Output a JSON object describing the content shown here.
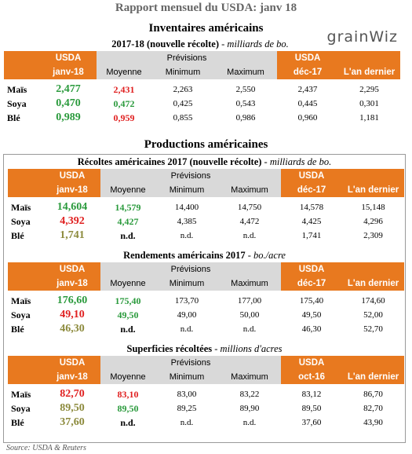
{
  "title": "Rapport mensuel du USDA: janv 18",
  "logo": "grainWiz",
  "inventaires": {
    "heading": "Inventaires américains",
    "table": {
      "subtitle": "2017-18 (nouvelle récolte)",
      "unit": "- milliards de bo.",
      "header_top": [
        "USDA",
        "Prévisions",
        "USDA"
      ],
      "header_bottom": [
        "janv-18",
        "Moyenne",
        "Minimum",
        "Maximum",
        "déc-17",
        "L'an dernier"
      ],
      "rows": [
        {
          "cells": [
            "Maïs",
            "2,477",
            "2,431",
            "2,263",
            "2,550",
            "2,437",
            "2,295"
          ],
          "colors": [
            "#2a9a3c",
            "#e02020"
          ]
        },
        {
          "cells": [
            "Soya",
            "0,470",
            "0,472",
            "0,425",
            "0,543",
            "0,445",
            "0,301"
          ],
          "colors": [
            "#2a9a3c",
            "#2a9a3c"
          ]
        },
        {
          "cells": [
            "Blé",
            "0,989",
            "0,959",
            "0,855",
            "0,986",
            "0,960",
            "1,181"
          ],
          "colors": [
            "#2a9a3c",
            "#e02020"
          ]
        }
      ]
    }
  },
  "productions": {
    "heading": "Productions américaines",
    "tables": [
      {
        "subtitle": "Récoltes américaines 2017 (nouvelle récolte)",
        "unit": "- milliards de bo.",
        "header_top": [
          "USDA",
          "Prévisions",
          "USDA"
        ],
        "header_bottom": [
          "janv-18",
          "Moyenne",
          "Minimum",
          "Maximum",
          "déc-17",
          "L'an dernier"
        ],
        "rows": [
          {
            "cells": [
              "Maïs",
              "14,604",
              "14,579",
              "14,400",
              "14,750",
              "14,578",
              "15,148"
            ],
            "colors": [
              "#2a9a3c",
              "#2a9a3c"
            ]
          },
          {
            "cells": [
              "Soya",
              "4,392",
              "4,427",
              "4,385",
              "4,472",
              "4,425",
              "4,296"
            ],
            "colors": [
              "#e02020",
              "#2a9a3c"
            ]
          },
          {
            "cells": [
              "Blé",
              "1,741",
              "n.d.",
              "n.d.",
              "n.d.",
              "1,741",
              "2,309"
            ],
            "colors": [
              "#8c8a3c",
              "#000000"
            ]
          }
        ]
      },
      {
        "subtitle": "Rendements américains 2017",
        "unit": "- bo./acre",
        "header_top": [
          "USDA",
          "Prévisions",
          "USDA"
        ],
        "header_bottom": [
          "janv-18",
          "Moyenne",
          "Minimum",
          "Maximum",
          "déc-17",
          "L'an dernier"
        ],
        "rows": [
          {
            "cells": [
              "Maïs",
              "176,60",
              "175,40",
              "173,70",
              "177,00",
              "175,40",
              "174,60"
            ],
            "colors": [
              "#2a9a3c",
              "#2a9a3c"
            ]
          },
          {
            "cells": [
              "Soya",
              "49,10",
              "49,50",
              "49,00",
              "50,00",
              "49,50",
              "52,00"
            ],
            "colors": [
              "#e02020",
              "#2a9a3c"
            ]
          },
          {
            "cells": [
              "Blé",
              "46,30",
              "n.d.",
              "n.d.",
              "n.d.",
              "46,30",
              "52,70"
            ],
            "colors": [
              "#8c8a3c",
              "#000000"
            ]
          }
        ]
      },
      {
        "subtitle": "Superficies récoltées",
        "unit": "- millions d'acres",
        "header_top": [
          "USDA",
          "Prévisions",
          "USDA"
        ],
        "header_bottom": [
          "janv-18",
          "Moyenne",
          "Minimum",
          "Maximum",
          "oct-16",
          "L'an dernier"
        ],
        "rows": [
          {
            "cells": [
              "Maïs",
              "82,70",
              "83,10",
              "83,00",
              "83,22",
              "83,12",
              "86,70"
            ],
            "colors": [
              "#e02020",
              "#e02020"
            ]
          },
          {
            "cells": [
              "Soya",
              "89,50",
              "89,50",
              "89,25",
              "89,90",
              "89,50",
              "82,70"
            ],
            "colors": [
              "#8c8a3c",
              "#2a9a3c"
            ]
          },
          {
            "cells": [
              "Blé",
              "37,60",
              "n.d.",
              "n.d.",
              "n.d.",
              "37,60",
              "43,90"
            ],
            "colors": [
              "#8c8a3c",
              "#000000"
            ]
          }
        ]
      }
    ]
  },
  "source": "Source: USDA & Reuters"
}
